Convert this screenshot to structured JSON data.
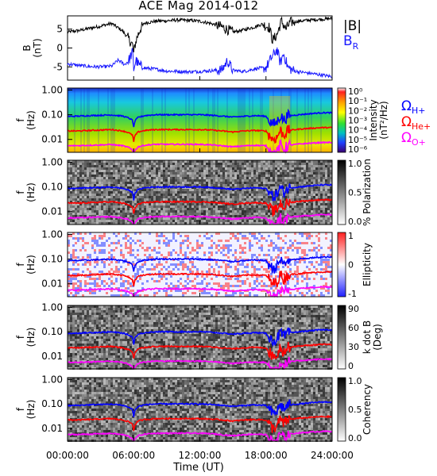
{
  "title": "ACE Mag 2014-012",
  "colors": {
    "btotal": "#000000",
    "br": "#1a1aff",
    "oh": "#0000ff",
    "ohe": "#ff0000",
    "oo": "#ff00ff"
  },
  "chart_data": [
    {
      "type": "line",
      "panel": "magnetic-field",
      "ylabel": "B\n(nT)",
      "ylabel_lines": [
        "B",
        "(nT)"
      ],
      "ylim": [
        -8.5,
        8.5
      ],
      "yticks": [
        {
          "v": 5,
          "label": "5"
        },
        {
          "v": 0,
          "label": "0"
        },
        {
          "v": -5,
          "label": "-5"
        }
      ],
      "legend": [
        {
          "label": "|B|",
          "sub": "",
          "color": "#000000"
        },
        {
          "label": "B",
          "sub": "R",
          "color": "#1a1aff"
        }
      ],
      "series": [
        {
          "name": "|B|",
          "color": "#000000",
          "x": [
            0,
            1,
            2,
            3,
            4,
            5,
            5.5,
            5.9,
            6.0,
            6.1,
            6.3,
            6.6,
            7,
            8,
            9,
            10,
            11,
            12,
            13,
            14,
            15,
            16,
            17,
            17.6,
            18.3,
            18.6,
            19,
            19.4,
            19.8,
            20.2,
            21,
            22,
            23,
            24
          ],
          "y": [
            4.2,
            4.6,
            5.2,
            5.8,
            6.5,
            4.5,
            2.6,
            0.8,
            -1.6,
            0.6,
            2.8,
            5.0,
            6.6,
            7.1,
            7.2,
            7.4,
            7.3,
            7.1,
            6.5,
            5.6,
            4.2,
            4.8,
            5.6,
            6.3,
            5.5,
            2.0,
            3.5,
            7.2,
            5.0,
            6.8,
            7.1,
            7.4,
            7.6,
            7.8
          ]
        },
        {
          "name": "B R",
          "color": "#1a1aff",
          "x": [
            0,
            1,
            2,
            3,
            4,
            4.6,
            5.2,
            5.6,
            5.9,
            6.0,
            6.2,
            6.5,
            7,
            8,
            9,
            10,
            11,
            12,
            13,
            14,
            14.5,
            15,
            16,
            17,
            18,
            18.5,
            19,
            19.3,
            19.6,
            20,
            20.5,
            21,
            22,
            23,
            24
          ],
          "y": [
            -4.2,
            -4.6,
            -4.9,
            -5.0,
            -4.8,
            -3.2,
            -4.4,
            -3.0,
            -1.0,
            -5.6,
            -3.2,
            -4.6,
            -5.3,
            -5.6,
            -6.1,
            -6.2,
            -6.3,
            -6.2,
            -6.0,
            -5.8,
            -3.4,
            -5.9,
            -6.2,
            -5.5,
            -5.2,
            -2.6,
            -0.4,
            -4.0,
            -1.5,
            -5.2,
            -6.0,
            -6.3,
            -6.7,
            -7.1,
            -7.6
          ]
        }
      ]
    },
    {
      "type": "heatmap",
      "panel": "intensity",
      "ylabel_lines": [
        "f",
        "(Hz)"
      ],
      "colorbar_title_lines": [
        "Intensity",
        "(nT²/Hz)"
      ],
      "colorbar_ticks": [
        "10⁰",
        "10⁻¹",
        "10⁻²",
        "10⁻³",
        "10⁻⁴",
        "10⁻⁵",
        "10⁻⁶"
      ],
      "colorbar_scale": "rainbow",
      "legend": [
        {
          "label": "Ω",
          "sub": "H+",
          "color": "#0000ff"
        },
        {
          "label": "Ω",
          "sub": "He+",
          "color": "#ff0000"
        },
        {
          "label": "Ω",
          "sub": "O+",
          "color": "#ff00ff"
        }
      ]
    },
    {
      "type": "heatmap",
      "panel": "polarization",
      "ylabel_lines": [
        "f",
        "(Hz)"
      ],
      "colorbar_title_lines": [
        "% Polarization"
      ],
      "colorbar_ticks": [
        "1.0",
        "0.5",
        "0.0"
      ],
      "colorbar_scale": "gray"
    },
    {
      "type": "heatmap",
      "panel": "ellipticity",
      "ylabel_lines": [
        "f",
        "(Hz)"
      ],
      "colorbar_title_lines": [
        "Ellipticity"
      ],
      "colorbar_ticks": [
        "1",
        "0",
        "-1"
      ],
      "colorbar_scale": "bwr"
    },
    {
      "type": "heatmap",
      "panel": "wave-normal-angle",
      "ylabel_lines": [
        "f",
        "(Hz)"
      ],
      "colorbar_title_lines": [
        "k dot B",
        "(Deg)"
      ],
      "colorbar_ticks": [
        "90",
        "60",
        "30",
        "0"
      ],
      "colorbar_scale": "gray"
    },
    {
      "type": "heatmap",
      "panel": "coherency",
      "ylabel_lines": [
        "f",
        "(Hz)"
      ],
      "colorbar_title_lines": [
        "Coherency"
      ],
      "colorbar_ticks": [
        "1.0",
        "0.5",
        "0.0"
      ],
      "colorbar_scale": "gray"
    }
  ],
  "spectrogram_axis": {
    "ylim_hz": [
      0.003,
      1.2
    ],
    "yticks": [
      {
        "v": 1.0,
        "label": "1.00"
      },
      {
        "v": 0.1,
        "label": "0.10"
      },
      {
        "v": 0.01,
        "label": "0.01"
      }
    ]
  },
  "gyrofrequency_lines": {
    "x_hours": [
      0,
      1,
      2,
      3,
      4,
      5,
      5.5,
      5.9,
      6.0,
      6.1,
      6.4,
      7,
      8,
      9,
      10,
      11,
      12,
      13,
      14,
      15,
      16,
      17,
      18,
      18.6,
      19,
      19.3,
      19.6,
      20,
      21,
      22,
      23,
      24
    ],
    "hplus_hz": [
      0.085,
      0.088,
      0.092,
      0.095,
      0.098,
      0.088,
      0.075,
      0.06,
      0.03,
      0.055,
      0.078,
      0.092,
      0.1,
      0.1,
      0.1,
      0.1,
      0.1,
      0.095,
      0.088,
      0.08,
      0.086,
      0.092,
      0.086,
      0.04,
      0.05,
      0.095,
      0.06,
      0.09,
      0.1,
      0.11,
      0.12,
      0.12
    ],
    "heplus_hz": [
      0.022,
      0.022,
      0.023,
      0.024,
      0.025,
      0.022,
      0.019,
      0.015,
      0.008,
      0.014,
      0.02,
      0.023,
      0.025,
      0.025,
      0.025,
      0.025,
      0.025,
      0.024,
      0.022,
      0.02,
      0.022,
      0.023,
      0.022,
      0.01,
      0.012,
      0.024,
      0.015,
      0.023,
      0.026,
      0.028,
      0.03,
      0.03
    ],
    "oplus_hz": [
      0.0055,
      0.0056,
      0.0058,
      0.006,
      0.0062,
      0.0055,
      0.0048,
      0.0038,
      0.002,
      0.0035,
      0.005,
      0.0058,
      0.0063,
      0.0063,
      0.0063,
      0.0063,
      0.0063,
      0.006,
      0.0055,
      0.005,
      0.0055,
      0.0058,
      0.0055,
      0.0025,
      0.003,
      0.006,
      0.0038,
      0.0058,
      0.0065,
      0.007,
      0.0075,
      0.0075
    ]
  },
  "xaxis": {
    "xlim": [
      0,
      24
    ],
    "ticks": [
      {
        "v": 0,
        "label": "00:00:00"
      },
      {
        "v": 6,
        "label": "06:00:00"
      },
      {
        "v": 12,
        "label": "12:00:00"
      },
      {
        "v": 18,
        "label": "18:00:00"
      },
      {
        "v": 24,
        "label": "24:00:00"
      }
    ],
    "label": "Time (UT)"
  }
}
